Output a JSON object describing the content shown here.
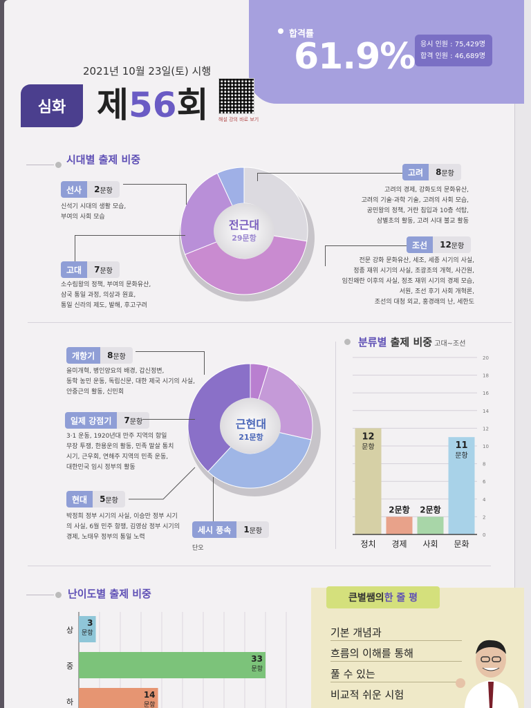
{
  "header": {
    "pass_rate_label": "합격률",
    "pass_rate": "61.9%",
    "applicants": "응시 인원 : 75,429명",
    "passers": "합격 인원 : 46,689명",
    "exam_date": "2021년 10월 23일(토) 시행",
    "level_badge": "심화",
    "title_prefix": "제",
    "title_number": "56",
    "title_suffix": "회",
    "qr_caption": "해설 강의 바로 보기"
  },
  "era_section": {
    "title": "시대별 출제 비중",
    "center_label": "전근대",
    "center_count": "29문항",
    "items": [
      {
        "name": "선사",
        "count": "2",
        "unit": "문항",
        "color": "#8f9ed6",
        "desc": [
          "신석기 시대의 생활 모습,",
          "부여의 사회 모습"
        ]
      },
      {
        "name": "고대",
        "count": "7",
        "unit": "문항",
        "color": "#8f9ed6",
        "desc": [
          "소수림왕의 정책, 부여의 문화유산,",
          "삼국 통일 과정, 의상과 원효,",
          "통일 신라의 제도, 발해, 후고구려"
        ]
      },
      {
        "name": "고려",
        "count": "8",
        "unit": "문항",
        "color": "#8f9ed6",
        "desc": [
          "고려의 경제, 강화도의 문화유산,",
          "고려의 기술·과학 기술, 고려의 사회 모습,",
          "공민왕의 정책, 거란 침입과 10층 석탑,",
          "삼별초의 활동, 고려 시대 불교 활동"
        ]
      },
      {
        "name": "조선",
        "count": "12",
        "unit": "문항",
        "color": "#8f9ed6",
        "desc": [
          "전문 강화 문화유산, 세조, 세종 시기의 사실,",
          "정종 재위 시기의 사실, 조광조의 개혁, 사간원,",
          "임진왜란 이후의 사실, 정조 재위 시기의 경제 모습,",
          "서원, 조선 후기 사회 개혁론,",
          "조선의 대청 외교, 홍경래의 난, 세한도"
        ]
      }
    ]
  },
  "modern_section": {
    "center_label": "근현대",
    "center_count": "21문항",
    "items": [
      {
        "name": "개항기",
        "count": "8",
        "unit": "문항",
        "color": "#8f9ed6",
        "desc": [
          "을미개혁, 병인양요의 배경, 갑신정변,",
          "동학 농민 운동, 독립신문, 대한 제국 시기의 사실,",
          "안중근의 활동, 신민회"
        ]
      },
      {
        "name": "일제 강점기",
        "count": "7",
        "unit": "문항",
        "color": "#8f9ed6",
        "desc": [
          "3·1 운동, 1920년대 만주 지역의 항일",
          "무장 투쟁, 한용운의 활동, 민족 말살 통치",
          "시기, 근우회, 연해주 지역의 민족 운동,",
          "대한민국 임시 정부의 활동"
        ]
      },
      {
        "name": "현대",
        "count": "5",
        "unit": "문항",
        "color": "#8f9ed6",
        "desc": [
          "박정희 정부 시기의 사실, 이승만 정부 시기",
          "의 사실, 6월 민주 항쟁, 김영삼 정부 시기의",
          "경제, 노태우 정부의 통일 노력"
        ]
      },
      {
        "name": "세시 풍속",
        "count": "1",
        "unit": "문항",
        "color": "#8f9ed6",
        "desc": [
          "단오"
        ]
      }
    ]
  },
  "category_section": {
    "title_main": "분류별",
    "title_rest": " 출제 비중",
    "title_sub": " 고대~조선"
  },
  "chart_data": [
    {
      "type": "bar",
      "title": "분류별 출제 비중 고대~조선",
      "categories": [
        "정치",
        "경제",
        "사회",
        "문화"
      ],
      "values": [
        12,
        2,
        2,
        11
      ],
      "data_labels": [
        "12 문항",
        "2문항",
        "2문항",
        "11 문항"
      ],
      "colors": [
        "#d6d0a6",
        "#e8a28a",
        "#a8d6a8",
        "#a8d2e8"
      ],
      "ylim": [
        0,
        20
      ],
      "yticks": [
        0,
        2,
        4,
        6,
        8,
        10,
        12,
        14,
        16,
        18,
        20
      ],
      "grid": true
    },
    {
      "type": "bar",
      "title": "난이도별 출제 비중",
      "orientation": "horizontal",
      "categories": [
        "상",
        "중",
        "하"
      ],
      "values": [
        3,
        33,
        14
      ],
      "data_labels": [
        "3 문항",
        "33 문항",
        "14 문항"
      ],
      "colors": [
        "#8fc6d8",
        "#7cc37a",
        "#e69572"
      ],
      "grid": true
    }
  ],
  "onejul": {
    "tag_main": "큰별쌤의 ",
    "tag_hl": "한 줄 평",
    "lines": [
      "기본 개념과",
      "흐름의 이해를 통해",
      "풀 수 있는",
      "비교적 쉬운 시험"
    ]
  },
  "difficulty_section": {
    "title": "난이도별 출제 비중"
  }
}
